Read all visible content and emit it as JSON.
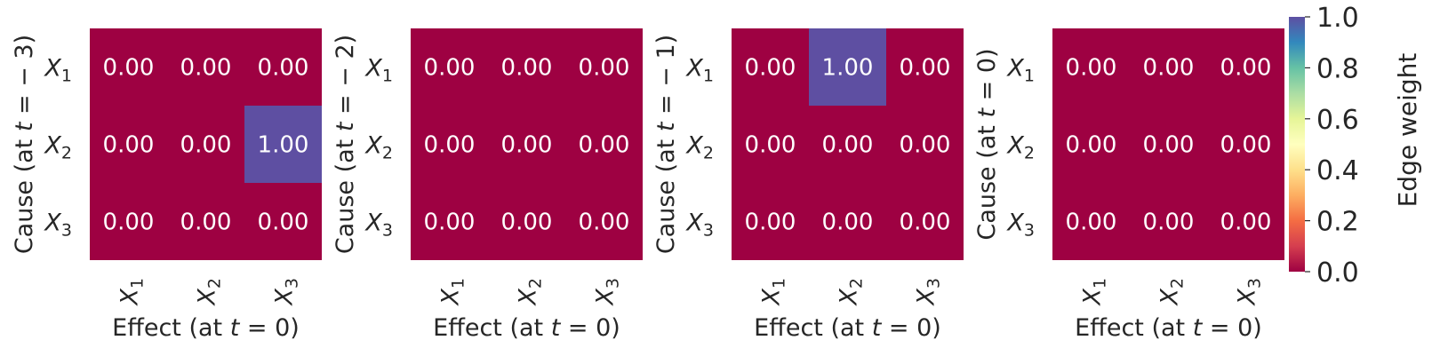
{
  "chart_data": [
    {
      "type": "heatmap",
      "rows": [
        "X_1",
        "X_2",
        "X_3"
      ],
      "columns": [
        "X_1",
        "X_2",
        "X_3"
      ],
      "ylabel": "Cause (at t = − 3)",
      "xlabel": "Effect (at t = 0)",
      "values": [
        [
          0.0,
          0.0,
          0.0
        ],
        [
          0.0,
          0.0,
          1.0
        ],
        [
          0.0,
          0.0,
          0.0
        ]
      ]
    },
    {
      "type": "heatmap",
      "rows": [
        "X_1",
        "X_2",
        "X_3"
      ],
      "columns": [
        "X_1",
        "X_2",
        "X_3"
      ],
      "ylabel": "Cause (at t = − 2)",
      "xlabel": "Effect (at t = 0)",
      "values": [
        [
          0.0,
          0.0,
          0.0
        ],
        [
          0.0,
          0.0,
          0.0
        ],
        [
          0.0,
          0.0,
          0.0
        ]
      ]
    },
    {
      "type": "heatmap",
      "rows": [
        "X_1",
        "X_2",
        "X_3"
      ],
      "columns": [
        "X_1",
        "X_2",
        "X_3"
      ],
      "ylabel": "Cause (at t = − 1)",
      "xlabel": "Effect (at t = 0)",
      "values": [
        [
          0.0,
          1.0,
          0.0
        ],
        [
          0.0,
          0.0,
          0.0
        ],
        [
          0.0,
          0.0,
          0.0
        ]
      ]
    },
    {
      "type": "heatmap",
      "rows": [
        "X_1",
        "X_2",
        "X_3"
      ],
      "columns": [
        "X_1",
        "X_2",
        "X_3"
      ],
      "ylabel": "Cause (at t = 0)",
      "xlabel": "Effect (at t = 0)",
      "values": [
        [
          0.0,
          0.0,
          0.0
        ],
        [
          0.0,
          0.0,
          0.0
        ],
        [
          0.0,
          0.0,
          0.0
        ]
      ]
    }
  ],
  "colorbar": {
    "label": "Edge weight",
    "range": [
      0.0,
      1.0
    ],
    "ticks": [
      "0.0",
      "0.2",
      "0.4",
      "0.6",
      "0.8",
      "1.0"
    ],
    "colormap": "Spectral",
    "low_color": "#9e0142",
    "high_color": "#5e4fa2",
    "cell_text_color": "#ffffff"
  }
}
